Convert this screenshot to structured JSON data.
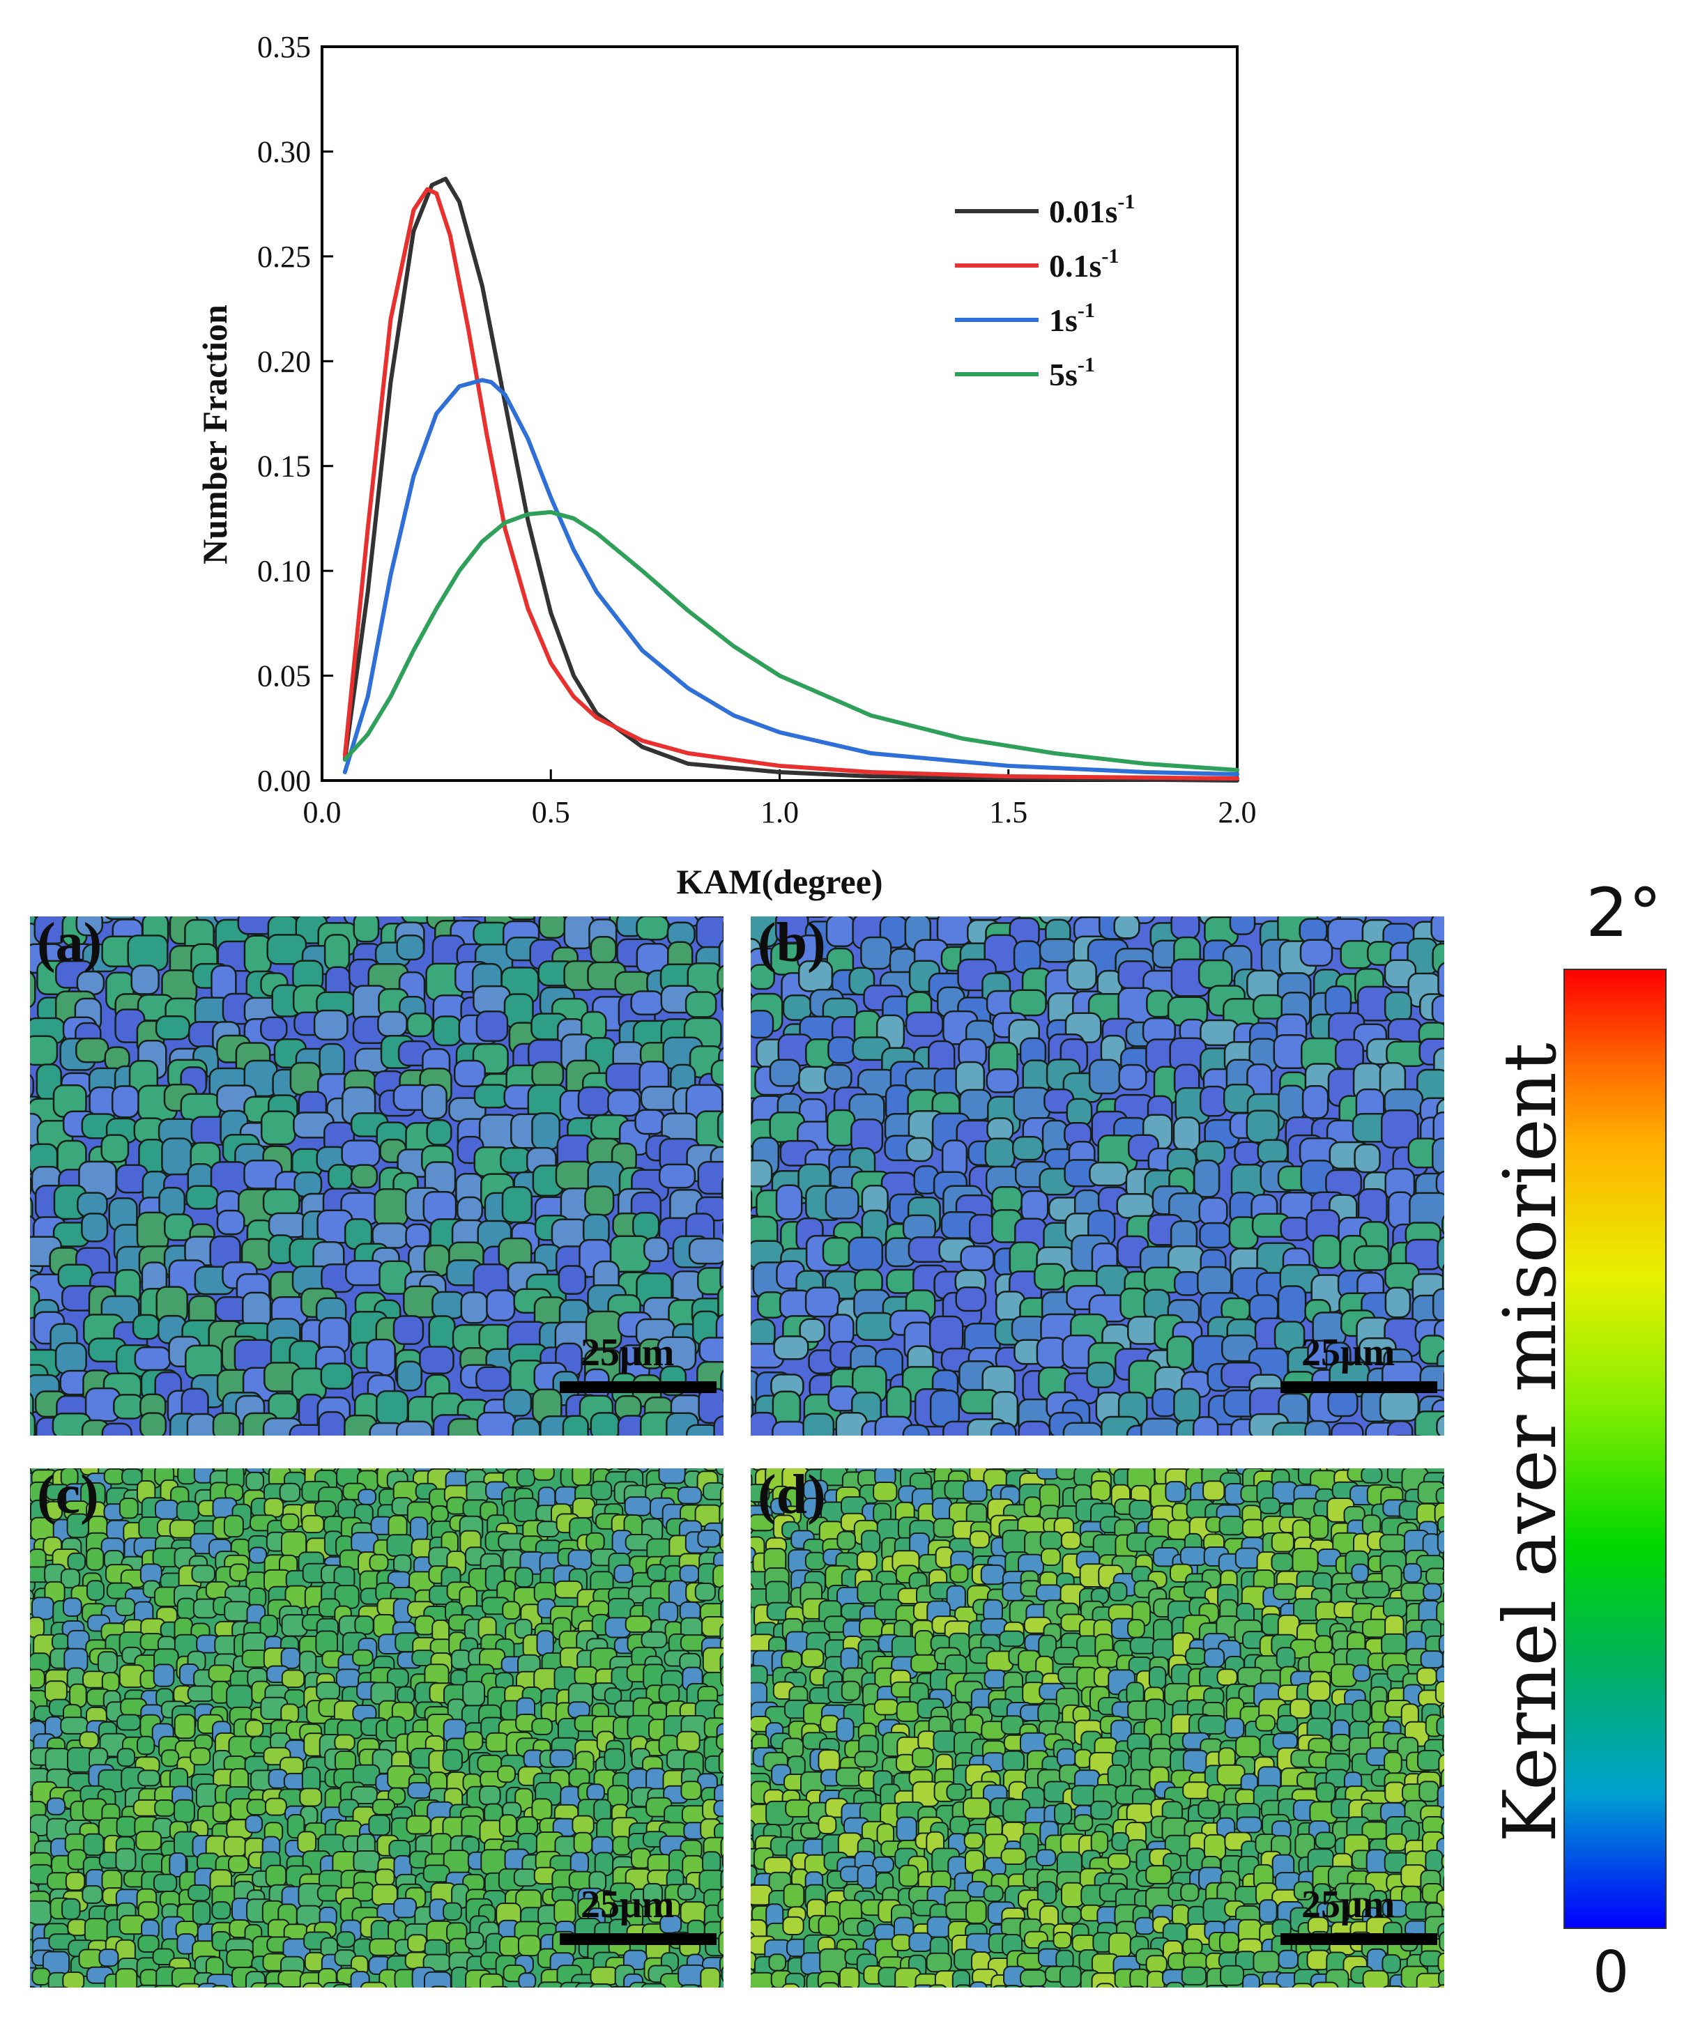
{
  "chart_data": {
    "type": "line",
    "xlabel": "KAM(degree)",
    "ylabel": "Number Fraction",
    "xlim": [
      0.0,
      2.0
    ],
    "ylim": [
      0.0,
      0.35
    ],
    "xticks": [
      "0.0",
      "0.5",
      "1.0",
      "1.5",
      "2.0"
    ],
    "yticks": [
      "0.00",
      "0.05",
      "0.10",
      "0.15",
      "0.20",
      "0.25",
      "0.30",
      "0.35"
    ],
    "grid": false,
    "legend_position": "top-right",
    "series": [
      {
        "name": "0.01s",
        "superscript": "-1",
        "color": "#333333",
        "x": [
          0.05,
          0.1,
          0.15,
          0.2,
          0.24,
          0.27,
          0.3,
          0.35,
          0.4,
          0.45,
          0.5,
          0.55,
          0.6,
          0.7,
          0.8,
          1.0,
          1.2,
          1.5,
          2.0
        ],
        "y": [
          0.01,
          0.09,
          0.19,
          0.262,
          0.284,
          0.287,
          0.276,
          0.236,
          0.18,
          0.124,
          0.08,
          0.05,
          0.032,
          0.016,
          0.008,
          0.004,
          0.002,
          0.001,
          0.0
        ]
      },
      {
        "name": "0.1s",
        "superscript": "-1",
        "color": "#e8312f",
        "x": [
          0.05,
          0.1,
          0.15,
          0.2,
          0.23,
          0.25,
          0.28,
          0.32,
          0.36,
          0.4,
          0.45,
          0.5,
          0.55,
          0.6,
          0.7,
          0.8,
          1.0,
          1.2,
          1.5,
          2.0
        ],
        "y": [
          0.012,
          0.12,
          0.22,
          0.272,
          0.282,
          0.28,
          0.26,
          0.215,
          0.165,
          0.12,
          0.082,
          0.056,
          0.04,
          0.03,
          0.019,
          0.013,
          0.007,
          0.004,
          0.002,
          0.001
        ]
      },
      {
        "name": "1s",
        "superscript": "-1",
        "color": "#2f6fd8",
        "x": [
          0.05,
          0.1,
          0.15,
          0.2,
          0.25,
          0.3,
          0.35,
          0.37,
          0.4,
          0.45,
          0.5,
          0.55,
          0.6,
          0.7,
          0.8,
          0.9,
          1.0,
          1.2,
          1.5,
          1.8,
          2.0
        ],
        "y": [
          0.004,
          0.04,
          0.098,
          0.145,
          0.175,
          0.188,
          0.191,
          0.19,
          0.184,
          0.163,
          0.135,
          0.11,
          0.09,
          0.062,
          0.044,
          0.031,
          0.023,
          0.013,
          0.007,
          0.004,
          0.003
        ]
      },
      {
        "name": "5s",
        "superscript": "-1",
        "color": "#2ea05a",
        "x": [
          0.05,
          0.1,
          0.15,
          0.2,
          0.25,
          0.3,
          0.35,
          0.4,
          0.45,
          0.5,
          0.55,
          0.6,
          0.7,
          0.8,
          0.9,
          1.0,
          1.2,
          1.4,
          1.6,
          1.8,
          2.0
        ],
        "y": [
          0.01,
          0.022,
          0.04,
          0.062,
          0.082,
          0.1,
          0.114,
          0.123,
          0.127,
          0.128,
          0.125,
          0.118,
          0.1,
          0.081,
          0.064,
          0.05,
          0.031,
          0.02,
          0.013,
          0.008,
          0.005
        ]
      }
    ]
  },
  "maps": {
    "panels": [
      {
        "label": "(a)",
        "scale_bar": "25μm",
        "palette": [
          "#4d66d6",
          "#3f8fb0",
          "#3aa87a",
          "#5a7ee0",
          "#2e9f86",
          "#5d8fcf",
          "#46a06a"
        ]
      },
      {
        "label": "(b)",
        "scale_bar": "25μm",
        "palette": [
          "#5068d8",
          "#4475d2",
          "#3d98a2",
          "#5a7ee0",
          "#3aa87a",
          "#4b85c8",
          "#62a6c0"
        ]
      },
      {
        "label": "(c)",
        "scale_bar": "25μm",
        "palette": [
          "#39a86a",
          "#52b84a",
          "#6cc340",
          "#4f90c8",
          "#3fae5c",
          "#8ccc3c",
          "#4ab070"
        ]
      },
      {
        "label": "(d)",
        "scale_bar": "25μm",
        "palette": [
          "#40ac62",
          "#66c040",
          "#8ccd38",
          "#4c92c6",
          "#3aa870",
          "#a8d43a",
          "#52b458"
        ]
      }
    ]
  },
  "colorbar": {
    "title": "Kernel aver misorient",
    "max_label": "2°",
    "min_label": "0",
    "colors": [
      "#0000ff",
      "#00b25a",
      "#00d800",
      "#e8f000",
      "#ff0000"
    ]
  }
}
